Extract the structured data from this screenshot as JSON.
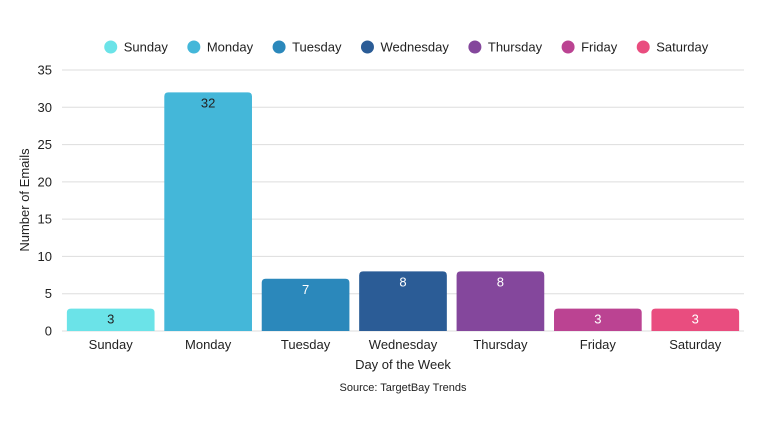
{
  "chart_data": {
    "type": "bar",
    "categories": [
      "Sunday",
      "Monday",
      "Tuesday",
      "Wednesday",
      "Thursday",
      "Friday",
      "Saturday"
    ],
    "values": [
      3,
      32,
      7,
      8,
      8,
      3,
      3
    ],
    "colors": [
      "#6be3e8",
      "#44b7d9",
      "#2b88bb",
      "#2b5c96",
      "#84479c",
      "#bb4392",
      "#e94d7f"
    ],
    "data_label_colors": [
      "#222222",
      "#222222",
      "#ffffff",
      "#ffffff",
      "#ffffff",
      "#ffffff",
      "#ffffff"
    ],
    "title": "",
    "xlabel": "Day of the Week",
    "ylabel": "Number of Emails",
    "ylim": [
      0,
      35
    ],
    "yticks": [
      0,
      5,
      10,
      15,
      20,
      25,
      30,
      35
    ],
    "grid": true,
    "legend": {
      "placement": "top",
      "entries": [
        "Sunday",
        "Monday",
        "Tuesday",
        "Wednesday",
        "Thursday",
        "Friday",
        "Saturday"
      ]
    },
    "source": "Source: TargetBay Trends"
  }
}
